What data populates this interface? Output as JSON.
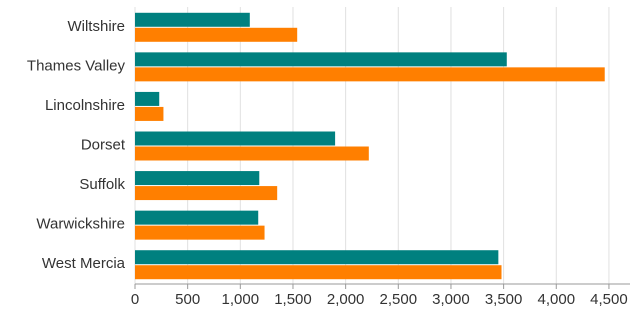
{
  "chart_data": {
    "type": "hbar",
    "categories": [
      "Wiltshire",
      "Thames Valley",
      "Lincolnshire",
      "Dorset",
      "Suffolk",
      "Warwickshire",
      "West Mercia"
    ],
    "series": [
      {
        "color": "#00807f",
        "values": [
          1090,
          3530,
          230,
          1900,
          1180,
          1170,
          3450
        ]
      },
      {
        "color": "#ff7f00",
        "values": [
          1540,
          4460,
          270,
          2220,
          1350,
          1230,
          3480
        ]
      }
    ],
    "xlim": [
      0,
      4700
    ],
    "xticks": [
      0,
      500,
      {
        "value": 1000,
        "label": "1,000"
      },
      {
        "value": 1500,
        "label": "1,500"
      },
      {
        "value": 2000,
        "label": "2,000"
      },
      {
        "value": 2500,
        "label": "2,500"
      },
      {
        "value": 3000,
        "label": "3,000"
      },
      {
        "value": 3500,
        "label": "3,500"
      },
      {
        "value": 4000,
        "label": "4,000"
      },
      {
        "value": 4500,
        "label": "4,500"
      }
    ],
    "grid": true
  }
}
